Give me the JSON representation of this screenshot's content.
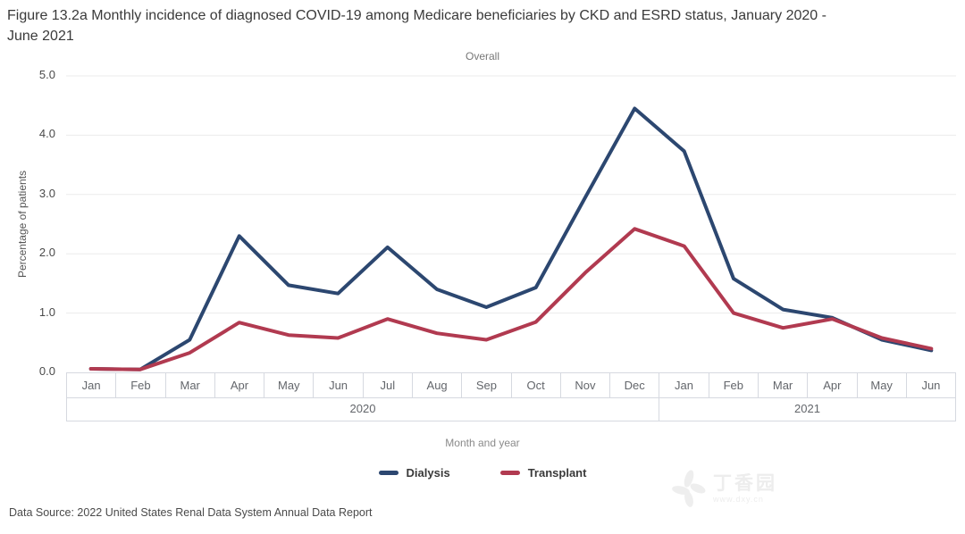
{
  "title": "Figure 13.2a Monthly incidence of diagnosed COVID-19 among Medicare beneficiaries by CKD and ESRD status, January 2020 - June 2021",
  "subtitle": "Overall",
  "y_axis": {
    "label": "Percentage of patients",
    "ticks": [
      "0.0",
      "1.0",
      "2.0",
      "3.0",
      "4.0",
      "5.0"
    ]
  },
  "x_axis": {
    "label": "Month and year",
    "months": [
      "Jan",
      "Feb",
      "Mar",
      "Apr",
      "May",
      "Jun",
      "Jul",
      "Aug",
      "Sep",
      "Oct",
      "Nov",
      "Dec",
      "Jan",
      "Feb",
      "Mar",
      "Apr",
      "May",
      "Jun"
    ],
    "years": [
      {
        "label": "2020",
        "months": 12
      },
      {
        "label": "2021",
        "months": 6
      }
    ]
  },
  "legend": [
    {
      "label": "Dialysis",
      "color": "#2c4770"
    },
    {
      "label": "Transplant",
      "color": "#b13a50"
    }
  ],
  "footer": {
    "data_source": "Data Source: 2022 United States Renal Data System Annual Data Report"
  },
  "watermark": {
    "name": "丁香园",
    "url": "www.dxy.cn"
  },
  "chart_data": {
    "type": "line",
    "title": "Figure 13.2a Monthly incidence of diagnosed COVID-19 among Medicare beneficiaries by CKD and ESRD status, January 2020 - June 2021",
    "subtitle": "Overall",
    "xlabel": "Month and year",
    "ylabel": "Percentage of patients",
    "ylim": [
      0,
      5
    ],
    "ytick_interval": 1.0,
    "grid": "horizontal",
    "legend_position": "bottom",
    "categories": [
      "Jan 2020",
      "Feb 2020",
      "Mar 2020",
      "Apr 2020",
      "May 2020",
      "Jun 2020",
      "Jul 2020",
      "Aug 2020",
      "Sep 2020",
      "Oct 2020",
      "Nov 2020",
      "Dec 2020",
      "Jan 2021",
      "Feb 2021",
      "Mar 2021",
      "Apr 2021",
      "May 2021",
      "Jun 2021"
    ],
    "series": [
      {
        "name": "Dialysis",
        "color": "#2c4770",
        "values": [
          0.06,
          0.05,
          0.55,
          2.3,
          1.47,
          1.33,
          2.11,
          1.4,
          1.1,
          1.43,
          2.95,
          4.45,
          3.73,
          1.58,
          1.06,
          0.92,
          0.55,
          0.37
        ]
      },
      {
        "name": "Transplant",
        "color": "#b13a50",
        "values": [
          0.06,
          0.05,
          0.33,
          0.84,
          0.63,
          0.58,
          0.9,
          0.66,
          0.55,
          0.85,
          1.68,
          2.42,
          2.13,
          1.0,
          0.75,
          0.9,
          0.58,
          0.4
        ]
      }
    ]
  }
}
